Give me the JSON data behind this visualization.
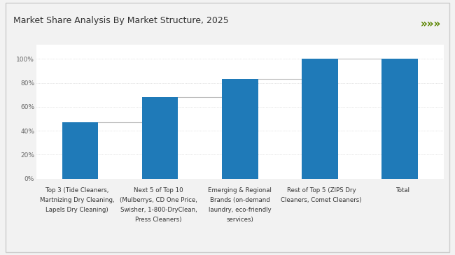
{
  "title": "Market Share Analysis By Market Structure, 2025",
  "categories": [
    "Top 3 (Tide Cleaners,\nMartnizing Dry Cleaning,\nLapels Dry Cleaning)",
    "Next 5 of Top 10\n(Mulberrys, CD One Price,\nSwisher, 1-800-DryClean,\nPress Cleaners)",
    "Emerging & Regional\nBrands (on-demand\nlaundry, eco-friendly\nservices)",
    "Rest of Top 5 (ZIPS Dry\nCleaners, Comet Cleaners)",
    "Total"
  ],
  "values": [
    47,
    68,
    83,
    100,
    100
  ],
  "bar_color": "#1F7AB8",
  "connector_color": "#BBBBBB",
  "background_color": "#F2F2F2",
  "plot_bg_color": "#FFFFFF",
  "title_fontsize": 9,
  "tick_label_fontsize": 6.2,
  "ylabel_fontsize": 6.5,
  "ylim": [
    0,
    112
  ],
  "yticks": [
    0,
    20,
    40,
    60,
    80,
    100
  ],
  "ytick_labels": [
    "0%",
    "20%",
    "40%",
    "60%",
    "80%",
    "100%"
  ],
  "green_line_color": "#8DC63F",
  "dark_green_arrow_color": "#5A8500",
  "border_color": "#CCCCCC",
  "arrow_symbol": "»»»",
  "bar_width": 0.45
}
